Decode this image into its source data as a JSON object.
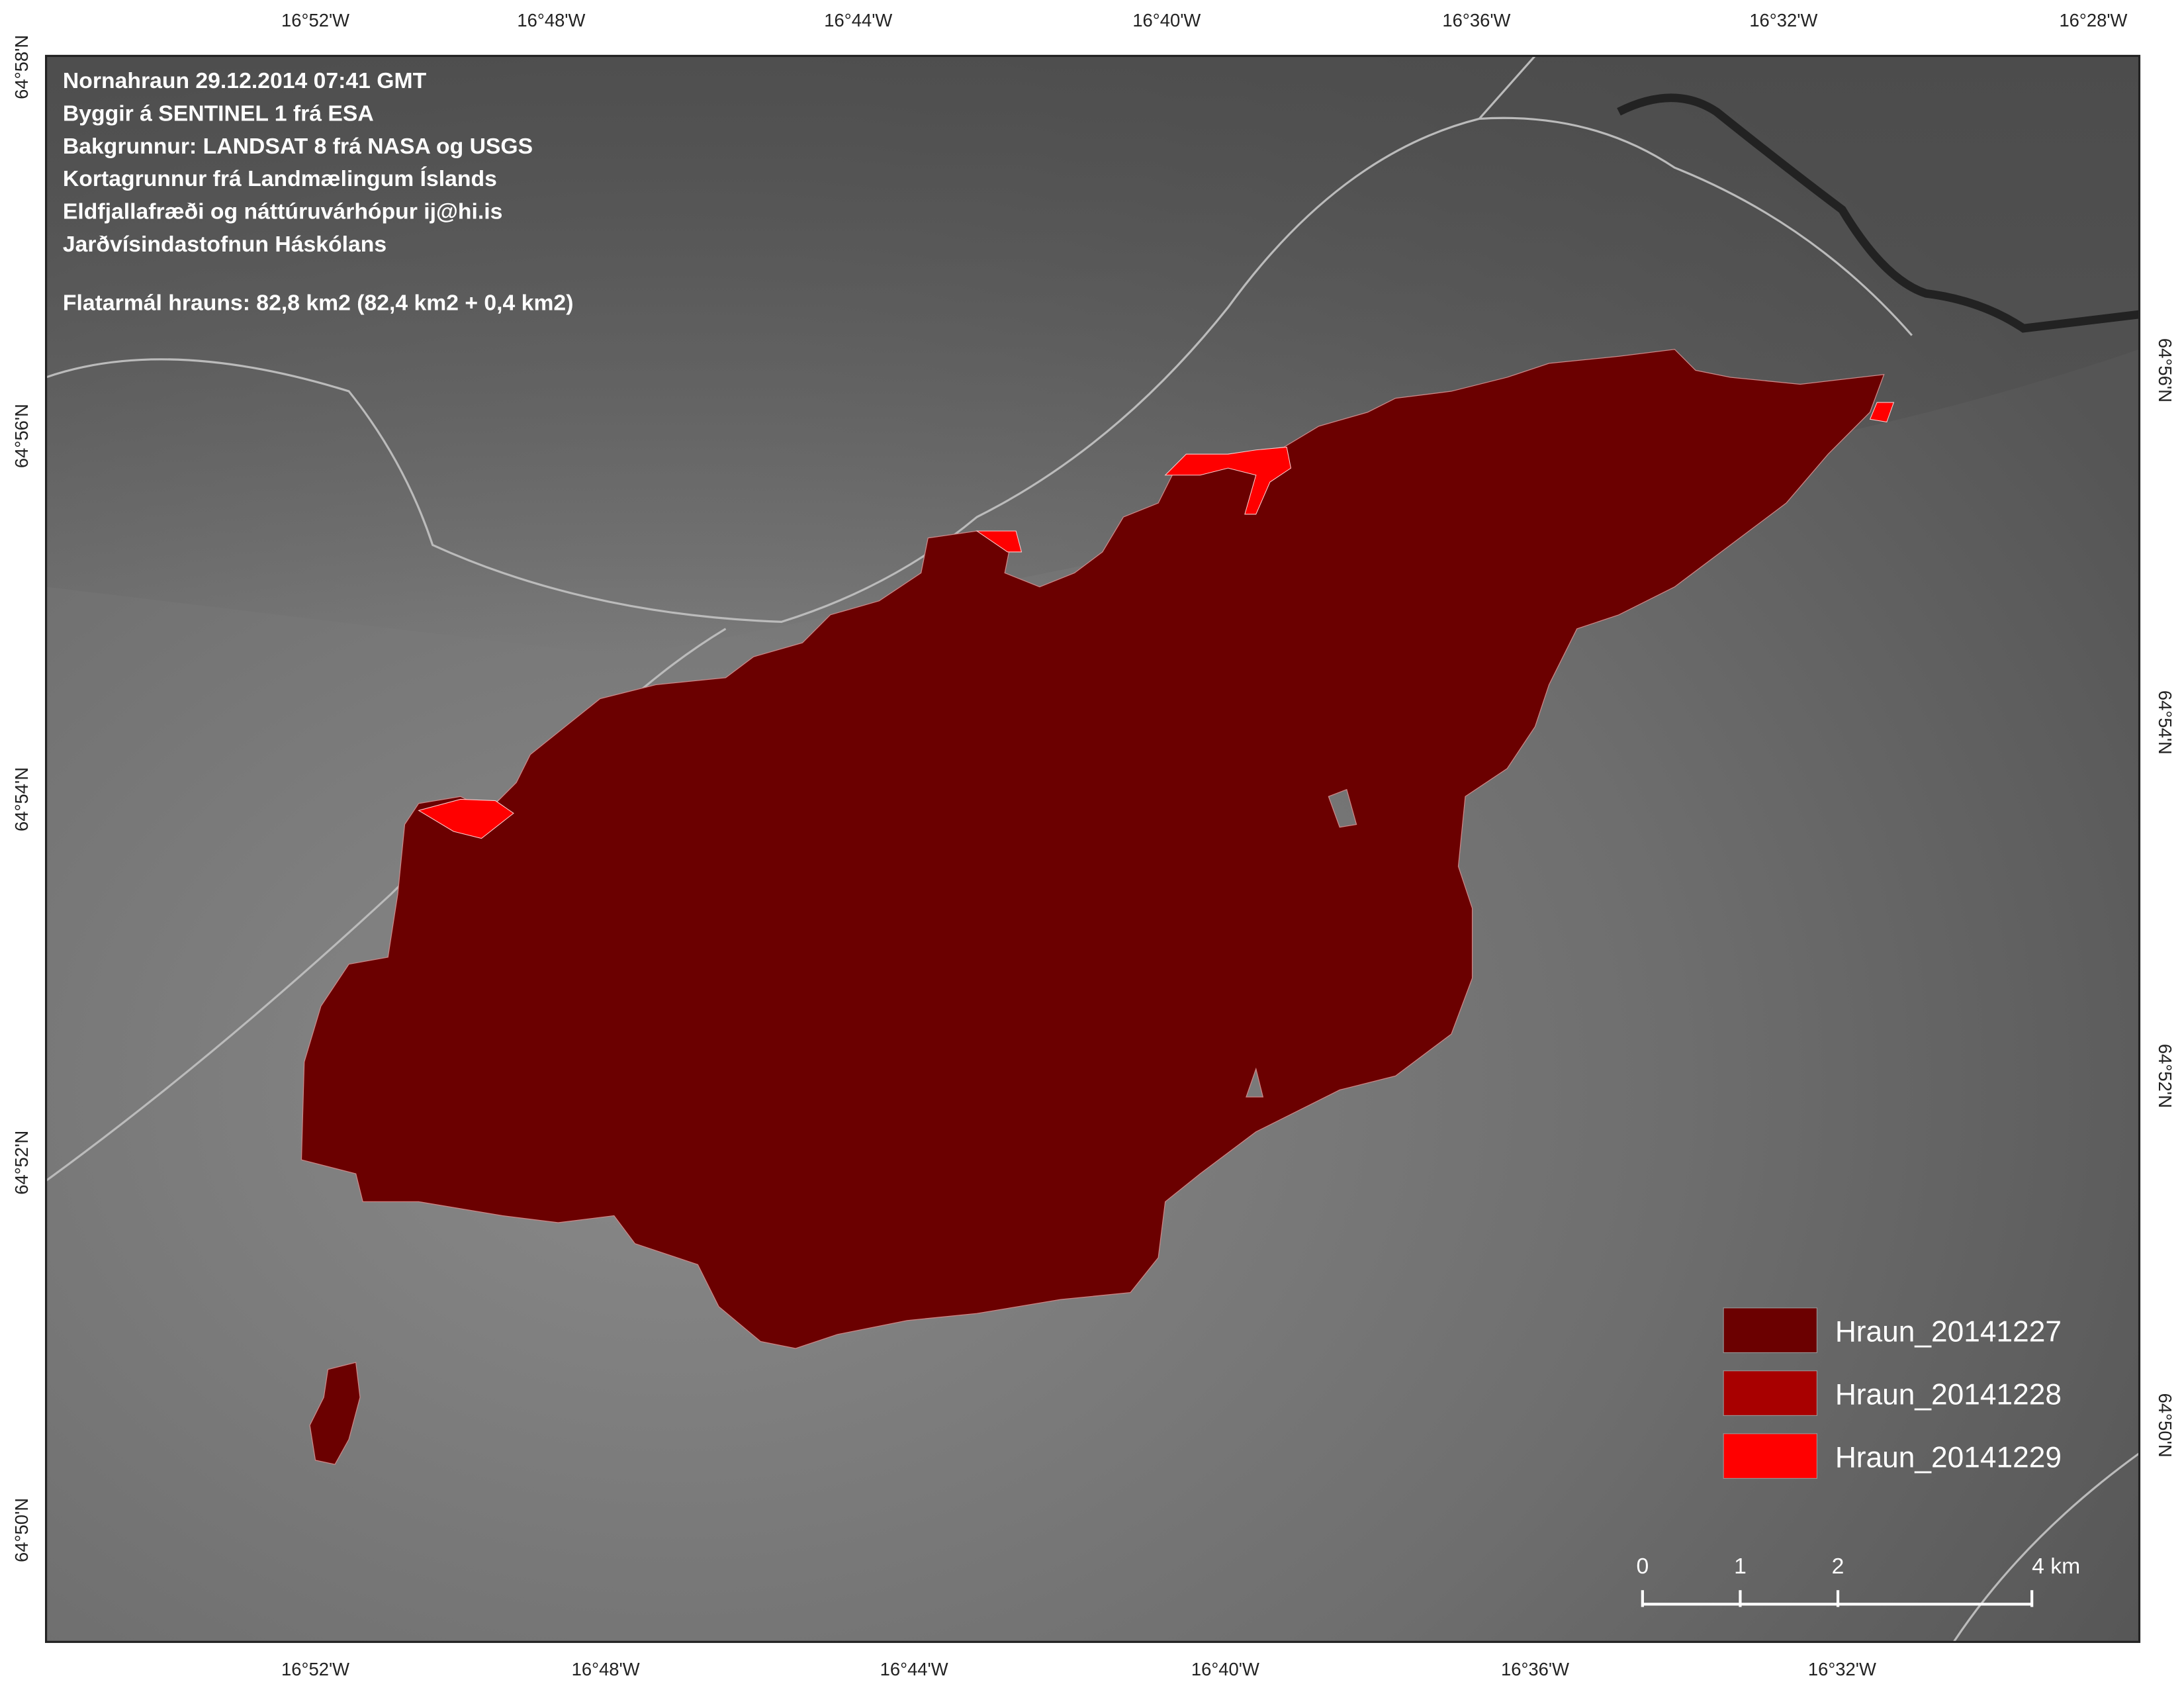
{
  "info": {
    "lines": [
      "Nornahraun 29.12.2014 07:41 GMT",
      "Byggir á SENTINEL 1 frá ESA",
      "Bakgrunnur: LANDSAT 8 frá NASA og USGS",
      "Kortagrunnur frá Landmælingum Íslands",
      "Eldfjallafræði og náttúruvárhópur  ij@hi.is",
      "Jarðvísindastofnun Háskólans"
    ],
    "area": "Flatarmál hrauns: 82,8 km2  (82,4 km2 + 0,4 km2)"
  },
  "legend": [
    {
      "label": "Hraun_20141227",
      "color": "#6b0000"
    },
    {
      "label": "Hraun_20141228",
      "color": "#a80000"
    },
    {
      "label": "Hraun_20141229",
      "color": "#ff0000"
    }
  ],
  "scale_bar": {
    "labels": [
      "0",
      "1",
      "2",
      "4 km"
    ]
  },
  "graticule": {
    "top": [
      "16°52'W",
      "16°48'W",
      "16°44'W",
      "16°40'W",
      "16°36'W",
      "16°32'W",
      "16°28'W"
    ],
    "bottom": [
      "16°52'W",
      "16°48'W",
      "16°44'W",
      "16°40'W",
      "16°36'W",
      "16°32'W"
    ],
    "left": [
      "64°58'N",
      "64°56'N",
      "64°54'N",
      "64°52'N",
      "64°50'N"
    ],
    "right": [
      "64°56'N",
      "64°54'N",
      "64°52'N",
      "64°50'N"
    ]
  }
}
